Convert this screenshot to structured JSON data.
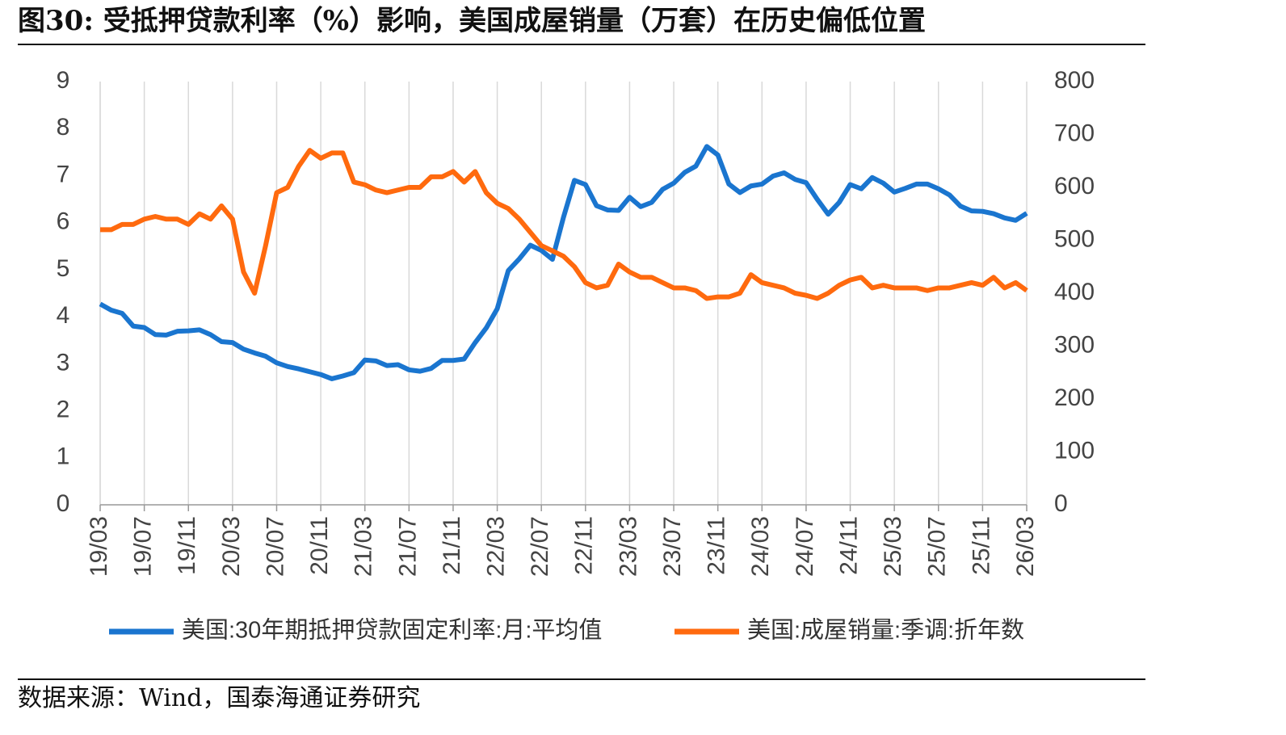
{
  "chart_data": {
    "type": "line",
    "title": "图30:  受抵押贷款利率（%）影响，美国成屋销量（万套）在历史偏低位置",
    "source": "数据来源：Wind，国泰海通证券研究",
    "categories": [
      "19/03",
      null,
      null,
      null,
      "19/07",
      null,
      null,
      null,
      "19/11",
      null,
      null,
      null,
      "20/03",
      null,
      null,
      null,
      "20/07",
      null,
      null,
      null,
      "20/11",
      null,
      null,
      null,
      "21/03",
      null,
      null,
      null,
      "21/07",
      null,
      null,
      null,
      "21/11",
      null,
      null,
      null,
      "22/03",
      null,
      null,
      null,
      "22/07",
      null,
      null,
      null,
      "22/11",
      null,
      null,
      null,
      "23/03",
      null,
      null,
      null,
      "23/07",
      null,
      null,
      null,
      "23/11",
      null,
      null,
      null,
      "24/03",
      null,
      null,
      null,
      "24/07",
      null,
      null,
      null,
      "24/11",
      null,
      null,
      null,
      "25/03",
      null,
      null,
      null,
      "25/07",
      null,
      null,
      null,
      "25/11",
      null,
      null,
      null,
      "26/03"
    ],
    "series": [
      {
        "name": "美国:30年期抵押贷款固定利率:月:平均值",
        "color": "#1a75cf",
        "values": [
          4.27,
          4.14,
          4.07,
          3.8,
          3.77,
          3.62,
          3.61,
          3.69,
          3.7,
          3.72,
          3.62,
          3.47,
          3.45,
          3.31,
          3.23,
          3.16,
          3.02,
          2.94,
          2.89,
          2.83,
          2.77,
          2.68,
          2.74,
          2.81,
          3.08,
          3.06,
          2.96,
          2.98,
          2.87,
          2.84,
          2.9,
          3.07,
          3.07,
          3.1,
          3.45,
          3.76,
          4.17,
          4.98,
          5.23,
          5.52,
          5.41,
          5.22,
          6.11,
          6.9,
          6.81,
          6.36,
          6.27,
          6.26,
          6.54,
          6.34,
          6.43,
          6.71,
          6.84,
          7.07,
          7.2,
          7.62,
          7.44,
          6.82,
          6.64,
          6.78,
          6.82,
          6.99,
          7.06,
          6.92,
          6.85,
          6.5,
          6.18,
          6.43,
          6.81,
          6.72,
          6.96,
          6.84,
          6.65,
          6.73,
          6.82,
          6.82,
          6.72,
          6.59,
          6.35,
          6.25,
          6.24,
          6.19,
          6.1,
          6.05,
          6.2
        ]
      },
      {
        "name": "美国:成屋销量:季调:折年数",
        "color": "#ff6a0e",
        "axis": "y2",
        "values": [
          520,
          520,
          530,
          530,
          540,
          545,
          540,
          540,
          530,
          550,
          540,
          565,
          540,
          440,
          400,
          490,
          590,
          600,
          640,
          670,
          655,
          665,
          665,
          610,
          605,
          595,
          590,
          595,
          600,
          600,
          620,
          620,
          630,
          610,
          630,
          590,
          570,
          560,
          540,
          515,
          490,
          480,
          470,
          450,
          420,
          410,
          415,
          455,
          440,
          430,
          430,
          420,
          410,
          410,
          405,
          390,
          393,
          393,
          400,
          435,
          420,
          415,
          410,
          400,
          396,
          390,
          400,
          415,
          425,
          430,
          410,
          415,
          410,
          410,
          410,
          405,
          410,
          410,
          415,
          420,
          415,
          430,
          410,
          420,
          405
        ]
      }
    ],
    "ylim": [
      0,
      9
    ],
    "yticks": [
      0,
      1,
      2,
      3,
      4,
      5,
      6,
      7,
      8,
      9
    ],
    "y2lim": [
      0,
      800
    ],
    "y2ticks": [
      0,
      100,
      200,
      300,
      400,
      500,
      600,
      700,
      800
    ],
    "grid": "x",
    "legend": "bottom"
  }
}
